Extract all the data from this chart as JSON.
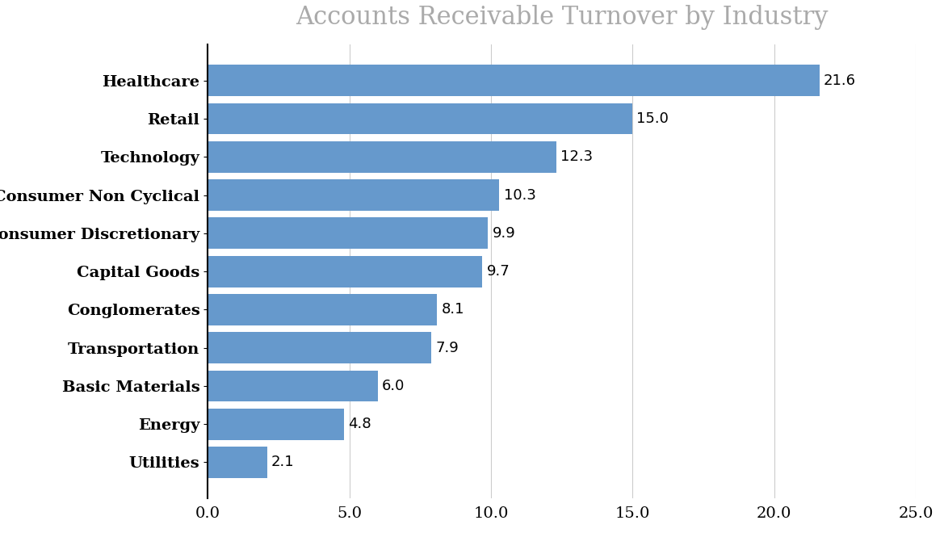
{
  "title": "Accounts Receivable Turnover by Industry",
  "categories": [
    "Utilities",
    "Energy",
    "Basic Materials",
    "Transportation",
    "Conglomerates",
    "Capital Goods",
    "Consumer Discretionary",
    "Consumer Non Cyclical",
    "Technology",
    "Retail",
    "Healthcare"
  ],
  "values": [
    2.1,
    4.8,
    6.0,
    7.9,
    8.1,
    9.7,
    9.9,
    10.3,
    12.3,
    15.0,
    21.6
  ],
  "bar_color": "#6699CC",
  "xlim": [
    0,
    25.0
  ],
  "xticks": [
    0.0,
    5.0,
    10.0,
    15.0,
    20.0,
    25.0
  ],
  "title_fontsize": 22,
  "tick_fontsize": 14,
  "label_fontsize": 14,
  "value_label_fontsize": 13,
  "background_color": "#ffffff",
  "grid_color": "#cccccc",
  "title_color": "#aaaaaa",
  "bar_height": 0.82
}
